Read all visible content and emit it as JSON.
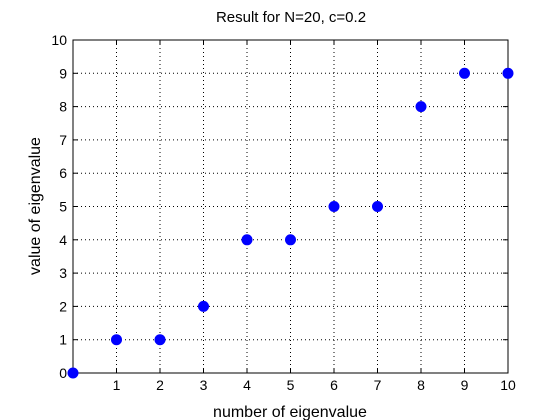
{
  "chart_data": {
    "type": "scatter",
    "title": "Result for N=20, c=0.2",
    "xlabel": "number of eigenvalue",
    "ylabel": "value of eigenvalue",
    "xlim": [
      0,
      10
    ],
    "ylim": [
      0,
      10
    ],
    "x_ticks": [
      1,
      2,
      3,
      4,
      5,
      6,
      7,
      8,
      9,
      10
    ],
    "y_ticks": [
      0,
      1,
      2,
      3,
      4,
      5,
      6,
      7,
      8,
      9,
      10
    ],
    "grid": true,
    "marker_color": "#0000ff",
    "series": [
      {
        "x": [
          0,
          1,
          2,
          3,
          4,
          5,
          6,
          7,
          8,
          9,
          10
        ],
        "y": [
          0,
          1,
          1,
          2,
          4,
          4,
          5,
          5,
          8,
          9,
          9
        ]
      }
    ]
  }
}
